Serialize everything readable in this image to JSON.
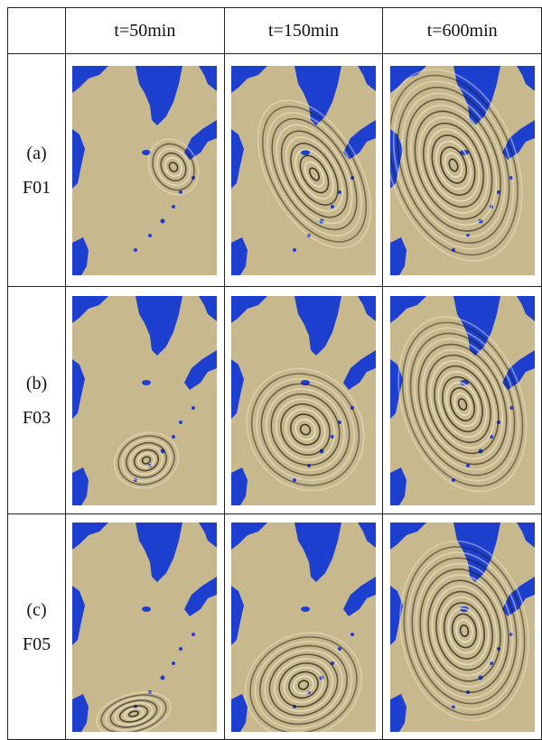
{
  "table": {
    "header": [
      "t=50min",
      "t=150min",
      "t=600min"
    ],
    "rows": [
      {
        "label": "(a)",
        "code": "F01"
      },
      {
        "label": "(b)",
        "code": "F03"
      },
      {
        "label": "(c)",
        "code": "F05"
      }
    ]
  }
}
